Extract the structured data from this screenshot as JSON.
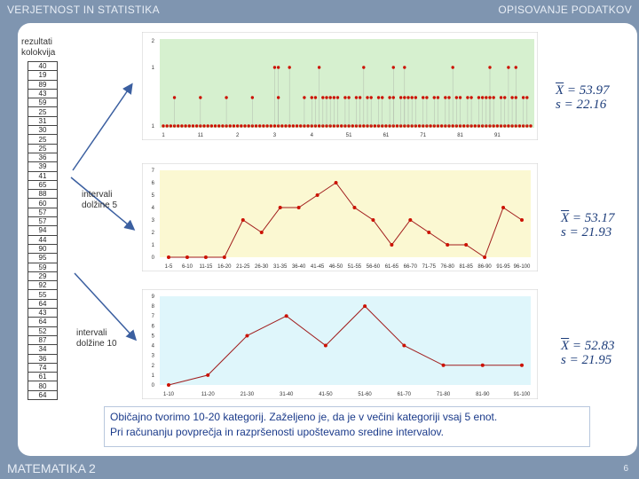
{
  "header": {
    "left_title": "VERJETNOST IN STATISTIKA",
    "right_title": "OPISOVANJE PODATKOV"
  },
  "footer": {
    "course": "MATEMATIKA 2",
    "page": "6"
  },
  "table_label": "rezultati kolokvija",
  "raw_values": [
    "40",
    "19",
    "89",
    "43",
    "59",
    "25",
    "31",
    "30",
    "25",
    "25",
    "36",
    "39",
    "41",
    "65",
    "88",
    "60",
    "57",
    "57",
    "94",
    "44",
    "90",
    "95",
    "59",
    "29",
    "92",
    "55",
    "64",
    "43",
    "64",
    "52",
    "87",
    "34",
    "36",
    "74",
    "61",
    "80",
    "64"
  ],
  "chart_data": [
    {
      "type": "scatter",
      "panel_color": "#d6f0cf",
      "y_ticks": [
        "2",
        "1",
        "1"
      ],
      "x_ticks": [
        "1",
        "11",
        "2",
        "3",
        "4",
        "51",
        "61",
        "71",
        "81",
        "91"
      ],
      "highlight_x": [
        30,
        31,
        34,
        42,
        54,
        62,
        65,
        78,
        88,
        93,
        95
      ]
    },
    {
      "type": "line",
      "panel_color": "#fbf8d2",
      "categories": [
        "1-5",
        "6-10",
        "11-15",
        "16-20",
        "21-25",
        "26-30",
        "31-35",
        "36-40",
        "41-45",
        "46-50",
        "51-55",
        "56-60",
        "61-65",
        "66-70",
        "71-75",
        "76-80",
        "81-85",
        "86-90",
        "91-95",
        "96-100"
      ],
      "values": [
        0,
        0,
        0,
        0,
        3,
        2,
        4,
        4,
        5,
        6,
        4,
        3,
        1,
        3,
        2,
        1,
        1,
        0,
        4,
        3
      ],
      "y_ticks": [
        "7",
        "6",
        "5",
        "4",
        "3",
        "2",
        "1",
        "0"
      ],
      "ylim": [
        0,
        7
      ]
    },
    {
      "type": "line",
      "panel_color": "#dff6fb",
      "categories": [
        "1-10",
        "11-20",
        "21-30",
        "31-40",
        "41-50",
        "51-60",
        "61-70",
        "71-80",
        "81-90",
        "91-100"
      ],
      "values": [
        0,
        1,
        5,
        7,
        4,
        8,
        4,
        2,
        2,
        2
      ],
      "y_ticks": [
        "9",
        "8",
        "7",
        "6",
        "5",
        "4",
        "3",
        "2",
        "1",
        "0"
      ],
      "ylim": [
        0,
        9
      ]
    }
  ],
  "stats": [
    {
      "mean_label": "X",
      "mean_value": "= 53.97",
      "sd_label": "s",
      "sd_value": "= 22.16"
    },
    {
      "mean_label": "X",
      "mean_value": "= 53.17",
      "sd_label": "s",
      "sd_value": "= 21.93"
    },
    {
      "mean_label": "X",
      "mean_value": "= 52.83",
      "sd_label": "s",
      "sd_value": "= 21.95"
    }
  ],
  "interval_labels": [
    {
      "line1": "intervali",
      "line2": "dolžine 5"
    },
    {
      "line1": "intervali",
      "line2": "dolžine 10"
    }
  ],
  "note": {
    "line1": "Običajno tvorimo 10-20 kategorij. Zaželjeno je, da je v večini kategoriji vsaj 5 enot.",
    "line2": "Pri računanju povprečja in razpršenosti upoštevamo sredine intervalov."
  },
  "colors": {
    "background": "#7f95b0",
    "marker": "#cc1100",
    "line": "#a01c1c",
    "accent": "#1d3d7a"
  }
}
